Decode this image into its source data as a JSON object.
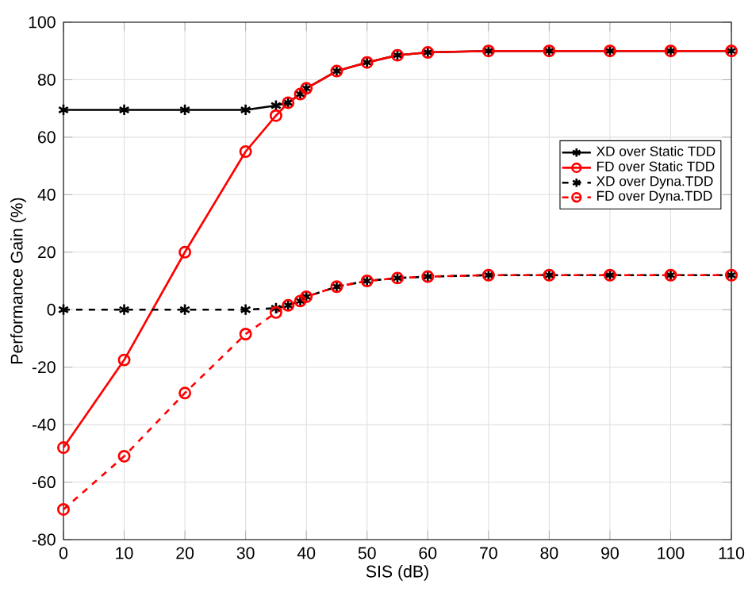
{
  "chart_data": {
    "type": "line",
    "xlabel": "SIS (dB)",
    "ylabel": "Performance Gain (%)",
    "x": [
      0,
      10,
      20,
      30,
      35,
      37,
      39,
      40,
      45,
      50,
      55,
      60,
      70,
      80,
      90,
      100,
      110
    ],
    "series": [
      {
        "name": "XD over Static TDD",
        "color": "#000000",
        "marker": "cross",
        "line_style": "solid",
        "values": [
          69.5,
          69.5,
          69.5,
          69.5,
          71,
          72,
          75,
          77,
          83,
          86,
          88.5,
          89.5,
          90,
          90,
          90,
          90,
          90
        ]
      },
      {
        "name": "FD over Static TDD",
        "color": "#ff0000",
        "marker": "circle",
        "line_style": "solid",
        "values": [
          -48,
          -17.5,
          20,
          55,
          67.5,
          72,
          75,
          77,
          83,
          86,
          88.5,
          89.5,
          90,
          90,
          90,
          90,
          90
        ]
      },
      {
        "name": "XD over Dyna.TDD",
        "color": "#000000",
        "marker": "cross",
        "line_style": "dashed",
        "values": [
          0,
          0,
          0,
          0,
          0.5,
          1.5,
          3,
          4.5,
          8,
          10,
          11,
          11.5,
          12,
          12,
          12,
          12,
          12
        ]
      },
      {
        "name": "FD over Dyna.TDD",
        "color": "#ff0000",
        "marker": "circle",
        "line_style": "dashed",
        "values": [
          -69.5,
          -51,
          -29,
          -8.5,
          -1,
          1.5,
          3,
          4.5,
          8,
          10,
          11,
          11.5,
          12,
          12,
          12,
          12,
          12
        ]
      }
    ],
    "xlim": [
      0,
      110
    ],
    "xticks": [
      0,
      10,
      20,
      30,
      40,
      50,
      60,
      70,
      80,
      90,
      100,
      110
    ],
    "ylim": [
      -80,
      100
    ],
    "yticks": [
      -80,
      -60,
      -40,
      -20,
      0,
      20,
      40,
      60,
      80,
      100
    ],
    "grid": true,
    "legend": "right"
  }
}
